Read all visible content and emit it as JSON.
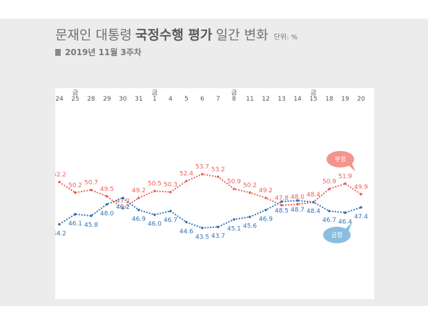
{
  "header": {
    "title_light": "문재인 대통령",
    "title_bold": "국정수행 평가",
    "title_tail": "일간 변화",
    "unit": "단위: %",
    "subtitle": "2019년 11월 3주차"
  },
  "colors": {
    "negative": "#e8605a",
    "positive": "#2f73b5",
    "negative_bubble": "#f4948c",
    "positive_bubble": "#8bbde0"
  },
  "chart_data": {
    "type": "line",
    "categories": [
      "24",
      "25",
      "28",
      "29",
      "30",
      "31",
      "1",
      "4",
      "5",
      "6",
      "7",
      "8",
      "11",
      "12",
      "13",
      "14",
      "15",
      "18",
      "19",
      "20"
    ],
    "friday_marker": "금",
    "friday_indices": [
      1,
      6,
      11,
      16
    ],
    "series": [
      {
        "name": "부정",
        "values": [
          52.2,
          50.2,
          50.7,
          49.5,
          47.2,
          49.2,
          50.5,
          50.3,
          52.4,
          53.7,
          53.2,
          50.9,
          50.2,
          49.2,
          47.8,
          48.0,
          48.4,
          50.9,
          51.9,
          49.9
        ],
        "labels": [
          "52.2",
          "50.2",
          "50.7",
          "49.5",
          "47.2",
          "49.2",
          "50.5",
          "50.3",
          "52.4",
          "53.7",
          "53.2",
          "50.9",
          "50.2",
          "49.2",
          "47.8",
          "48.0",
          "48.4",
          "50.9",
          "51.9",
          "49.9"
        ]
      },
      {
        "name": "긍정",
        "values": [
          44.2,
          46.1,
          45.8,
          48.0,
          49.2,
          46.9,
          46.0,
          46.7,
          44.6,
          43.5,
          43.7,
          45.1,
          45.6,
          46.9,
          48.5,
          48.7,
          48.4,
          46.7,
          46.4,
          47.4
        ],
        "labels": [
          "44.2",
          "46.1",
          "45.8",
          "48.0",
          "49.2",
          "46.9",
          "46.0",
          "46.7",
          "44.6",
          "43.5",
          "43.7",
          "45.1",
          "45.6",
          "46.9",
          "48.5",
          "48.7",
          "48.4",
          "46.7",
          "46.4",
          "47.4"
        ]
      }
    ],
    "ylim": [
      30,
      70
    ],
    "grid": false
  }
}
